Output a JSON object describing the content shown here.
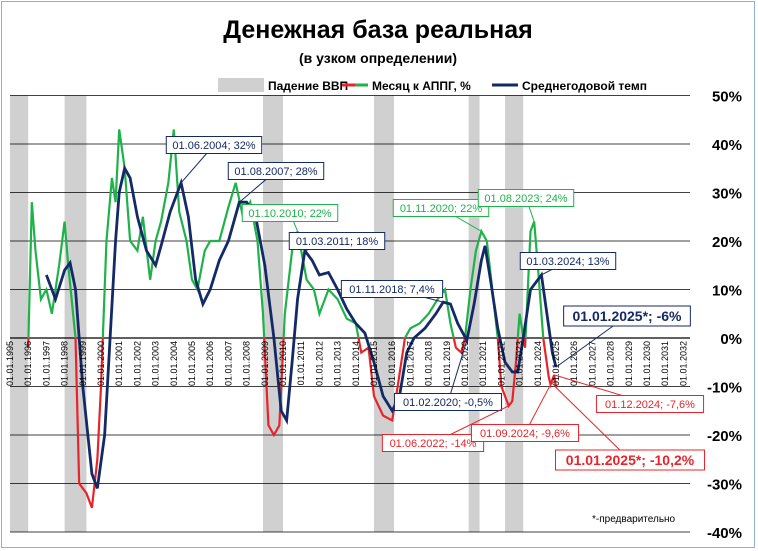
{
  "chart_data": {
    "type": "line",
    "title": "Денежная база реальная",
    "subtitle": "(в узком определении)",
    "footnote": "*-предварительно",
    "legend_position": "top",
    "legend": [
      {
        "label": "Падение ВВП",
        "kind": "band",
        "color": "#d0d0d0"
      },
      {
        "label": "Месяц к АППГ, %",
        "kind": "line",
        "colors": [
          "#e8242a",
          "#1fb24a"
        ]
      },
      {
        "label": "Среднегодовой темп",
        "kind": "line",
        "color": "#142a66"
      }
    ],
    "colors": {
      "positive": "#1fb24a",
      "negative": "#e8242a",
      "average": "#142a66",
      "band": "#d0d0d0"
    },
    "ylim": [
      -40,
      50
    ],
    "y_ticks": [
      "50%",
      "40%",
      "30%",
      "20%",
      "10%",
      "0%",
      "-10%",
      "-20%",
      "-30%",
      "-40%"
    ],
    "y_tick_values": [
      50,
      40,
      30,
      20,
      10,
      0,
      -10,
      -20,
      -30,
      -40
    ],
    "xlim": [
      1995,
      2032
    ],
    "x_ticks": [
      "01.01.1995",
      "01.01.1996",
      "01.01.1997",
      "01.01.1998",
      "01.01.1999",
      "01.01.2000",
      "01.01.2001",
      "01.01.2002",
      "01.01.2003",
      "01.01.2004",
      "01.01.2005",
      "01.01.2006",
      "01.01.2007",
      "01.01.2008",
      "01.01.2009",
      "01.01.2010",
      "01.01.2011",
      "01.01.2012",
      "01.01.2013",
      "01.01.2014",
      "01.01.2015",
      "01.01.2016",
      "01.01.2017",
      "01.01.2018",
      "01.01.2019",
      "01.01.2020",
      "01.01.2021",
      "01.01.2022",
      "01.01.2023",
      "01.01.2024",
      "01.01.2025",
      "01.01.2026",
      "01.01.2027",
      "01.01.2028",
      "01.01.2029",
      "01.01.2030",
      "01.01.2031",
      "01.01.2032"
    ],
    "gdp_decline_periods": [
      [
        1995.0,
        1996.0
      ],
      [
        1998.0,
        1999.2
      ],
      [
        2008.9,
        2010.0
      ],
      [
        2015.0,
        2016.1
      ],
      [
        2020.2,
        2020.8
      ],
      [
        2022.2,
        2023.2
      ]
    ],
    "series": [
      {
        "name": "Месяц к АППГ, %",
        "points": [
          [
            1996.0,
            -2
          ],
          [
            1996.2,
            28
          ],
          [
            1996.4,
            18
          ],
          [
            1996.7,
            8
          ],
          [
            1997.0,
            10
          ],
          [
            1997.3,
            5
          ],
          [
            1997.7,
            15
          ],
          [
            1998.0,
            24
          ],
          [
            1998.2,
            15
          ],
          [
            1998.6,
            0
          ],
          [
            1998.8,
            -30
          ],
          [
            1999.2,
            -32
          ],
          [
            1999.5,
            -35
          ],
          [
            1999.8,
            -25
          ],
          [
            2000.0,
            -10
          ],
          [
            2000.3,
            20
          ],
          [
            2000.6,
            33
          ],
          [
            2000.8,
            28
          ],
          [
            2001.0,
            43
          ],
          [
            2001.3,
            35
          ],
          [
            2001.6,
            20
          ],
          [
            2002.0,
            18
          ],
          [
            2002.3,
            25
          ],
          [
            2002.7,
            12
          ],
          [
            2003.0,
            20
          ],
          [
            2003.3,
            24
          ],
          [
            2003.7,
            32
          ],
          [
            2004.0,
            43
          ],
          [
            2004.3,
            26
          ],
          [
            2004.7,
            20
          ],
          [
            2005.0,
            12
          ],
          [
            2005.3,
            10
          ],
          [
            2005.7,
            18
          ],
          [
            2006.0,
            20
          ],
          [
            2006.5,
            20
          ],
          [
            2007.0,
            27
          ],
          [
            2007.4,
            32
          ],
          [
            2007.8,
            25
          ],
          [
            2008.2,
            28
          ],
          [
            2008.6,
            20
          ],
          [
            2008.9,
            5
          ],
          [
            2009.2,
            -18
          ],
          [
            2009.5,
            -20
          ],
          [
            2009.8,
            -18
          ],
          [
            2010.1,
            5
          ],
          [
            2010.5,
            18
          ],
          [
            2010.8,
            22
          ],
          [
            2011.0,
            18
          ],
          [
            2011.3,
            12
          ],
          [
            2011.7,
            10
          ],
          [
            2012.0,
            5
          ],
          [
            2012.5,
            10
          ],
          [
            2013.0,
            8
          ],
          [
            2013.5,
            4
          ],
          [
            2014.0,
            3
          ],
          [
            2014.3,
            -3
          ],
          [
            2014.7,
            -2
          ],
          [
            2015.0,
            -12
          ],
          [
            2015.5,
            -16
          ],
          [
            2016.0,
            -17
          ],
          [
            2016.3,
            -10
          ],
          [
            2016.7,
            0
          ],
          [
            2017.0,
            2
          ],
          [
            2017.5,
            3
          ],
          [
            2018.0,
            5
          ],
          [
            2018.5,
            8
          ],
          [
            2018.9,
            10
          ],
          [
            2019.2,
            3
          ],
          [
            2019.5,
            -2
          ],
          [
            2019.8,
            -3
          ],
          [
            2020.0,
            0
          ],
          [
            2020.3,
            10
          ],
          [
            2020.6,
            18
          ],
          [
            2020.9,
            22
          ],
          [
            2021.2,
            20
          ],
          [
            2021.5,
            10
          ],
          [
            2021.8,
            0
          ],
          [
            2022.0,
            -10
          ],
          [
            2022.4,
            -14
          ],
          [
            2022.6,
            -13
          ],
          [
            2022.8,
            -5
          ],
          [
            2023.0,
            5
          ],
          [
            2023.3,
            -2
          ],
          [
            2023.6,
            22
          ],
          [
            2023.8,
            24
          ],
          [
            2024.0,
            15
          ],
          [
            2024.3,
            0
          ],
          [
            2024.6,
            -8
          ],
          [
            2024.7,
            -9.6
          ],
          [
            2024.9,
            -7.6
          ],
          [
            2025.0,
            -10.2
          ]
        ]
      },
      {
        "name": "Среднегодовой темп",
        "points": [
          [
            1997.0,
            13
          ],
          [
            1997.5,
            8
          ],
          [
            1998.0,
            14
          ],
          [
            1998.3,
            15.5
          ],
          [
            1998.6,
            10
          ],
          [
            1999.0,
            -10
          ],
          [
            1999.5,
            -28
          ],
          [
            1999.8,
            -31
          ],
          [
            2000.2,
            -20
          ],
          [
            2000.5,
            0
          ],
          [
            2000.8,
            20
          ],
          [
            2001.0,
            30
          ],
          [
            2001.3,
            35
          ],
          [
            2001.6,
            33
          ],
          [
            2002.0,
            25
          ],
          [
            2002.5,
            18
          ],
          [
            2003.0,
            15
          ],
          [
            2003.3,
            19
          ],
          [
            2003.8,
            26
          ],
          [
            2004.4,
            32
          ],
          [
            2004.8,
            25
          ],
          [
            2005.2,
            12
          ],
          [
            2005.6,
            7
          ],
          [
            2006.0,
            10
          ],
          [
            2006.5,
            16
          ],
          [
            2007.0,
            20
          ],
          [
            2007.6,
            28
          ],
          [
            2008.0,
            28
          ],
          [
            2008.5,
            25
          ],
          [
            2009.0,
            15
          ],
          [
            2009.5,
            0
          ],
          [
            2009.9,
            -15
          ],
          [
            2010.2,
            -17
          ],
          [
            2010.5,
            -5
          ],
          [
            2010.8,
            8
          ],
          [
            2011.2,
            18
          ],
          [
            2011.6,
            16
          ],
          [
            2012.0,
            13
          ],
          [
            2012.5,
            13.5
          ],
          [
            2013.0,
            10
          ],
          [
            2013.5,
            6
          ],
          [
            2014.0,
            3
          ],
          [
            2014.5,
            1
          ],
          [
            2015.0,
            -5
          ],
          [
            2015.5,
            -12
          ],
          [
            2016.0,
            -15
          ],
          [
            2016.4,
            -12
          ],
          [
            2016.8,
            -3
          ],
          [
            2017.2,
            0
          ],
          [
            2017.8,
            2
          ],
          [
            2018.4,
            5
          ],
          [
            2018.8,
            7.4
          ],
          [
            2019.2,
            7
          ],
          [
            2019.6,
            3
          ],
          [
            2020.1,
            -0.5
          ],
          [
            2020.5,
            7
          ],
          [
            2020.9,
            16
          ],
          [
            2021.1,
            19
          ],
          [
            2021.4,
            12
          ],
          [
            2021.8,
            2
          ],
          [
            2022.2,
            -5
          ],
          [
            2022.6,
            -7
          ],
          [
            2022.9,
            -7
          ],
          [
            2023.2,
            0
          ],
          [
            2023.6,
            10
          ],
          [
            2024.0,
            12
          ],
          [
            2024.2,
            13
          ],
          [
            2024.5,
            5
          ],
          [
            2024.8,
            -3
          ],
          [
            2025.0,
            -6
          ]
        ]
      }
    ],
    "annotations": [
      {
        "text": "01.06.2004; 32%",
        "x": 2004.4,
        "y": 32,
        "color": "#142a66"
      },
      {
        "text": "01.08.2007; 28%",
        "x": 2007.6,
        "y": 28,
        "color": "#142a66"
      },
      {
        "text": "01.10.2010; 22%",
        "x": 2010.8,
        "y": 22,
        "color": "#1fb24a"
      },
      {
        "text": "01.03.2011; 18%",
        "x": 2011.2,
        "y": 18,
        "color": "#142a66"
      },
      {
        "text": "01.11.2020; 22%",
        "x": 2020.9,
        "y": 22,
        "color": "#1fb24a"
      },
      {
        "text": "01.08.2023; 24%",
        "x": 2023.8,
        "y": 24,
        "color": "#1fb24a"
      },
      {
        "text": "01.03.2024; 13%",
        "x": 2024.2,
        "y": 13,
        "color": "#142a66"
      },
      {
        "text": "01.11.2018; 7,4%",
        "x": 2018.8,
        "y": 7.4,
        "color": "#142a66"
      },
      {
        "text": "01.01.2025*; -6%",
        "x": 2025.0,
        "y": -6,
        "color": "#142a66"
      },
      {
        "text": "01.02.2020; -0,5%",
        "x": 2020.1,
        "y": -0.5,
        "color": "#142a66"
      },
      {
        "text": "01.12.2024; -7,6%",
        "x": 2024.9,
        "y": -7.6,
        "color": "#e8242a"
      },
      {
        "text": "01.06.2022; -14%",
        "x": 2022.4,
        "y": -14,
        "color": "#e8242a"
      },
      {
        "text": "01.09.2024; -9,6%",
        "x": 2024.7,
        "y": -9.6,
        "color": "#e8242a"
      },
      {
        "text": "01.01.2025*; -10,2%",
        "x": 2025.0,
        "y": -10.2,
        "color": "#e8242a"
      }
    ]
  }
}
